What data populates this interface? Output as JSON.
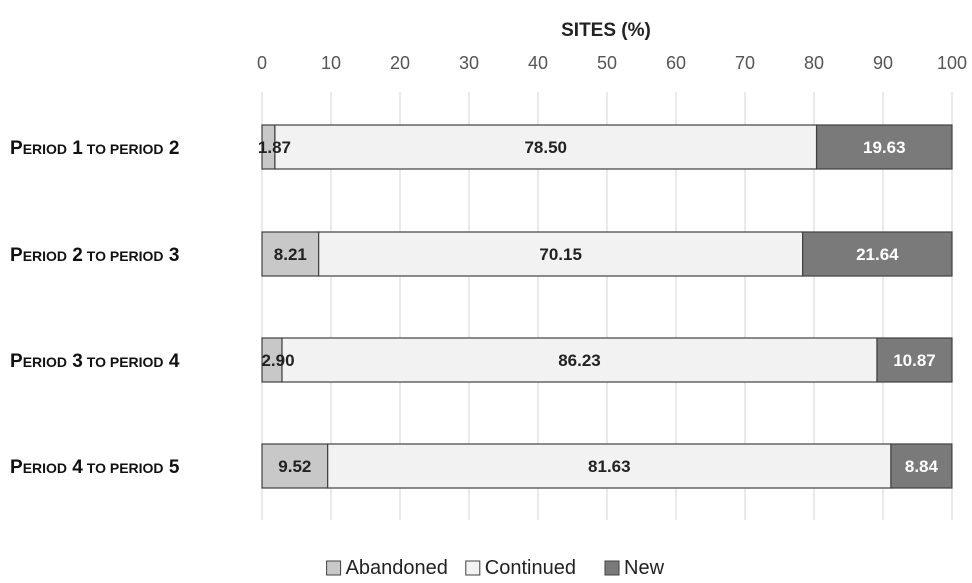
{
  "chart_data": {
    "type": "bar",
    "orientation": "horizontal",
    "stacked": true,
    "title": "",
    "xlabel": "SITES (%)",
    "ylabel": "",
    "xlim": [
      0,
      100
    ],
    "x_ticks": [
      "0",
      "10",
      "20",
      "30",
      "40",
      "50",
      "60",
      "70",
      "80",
      "90",
      "100"
    ],
    "x_axis_position": "top",
    "grid": "vertical",
    "legend_position": "bottom",
    "categories": [
      "Period 1 to period 2",
      "Period 2 to period 3",
      "Period 3 to period 4",
      "Period 4 to period 5"
    ],
    "series": [
      {
        "name": "Abandoned",
        "values": [
          1.87,
          8.21,
          2.9,
          9.52
        ],
        "labels": [
          "1.87",
          "8.21",
          "2.90",
          "9.52"
        ],
        "color": "#c8c8c8"
      },
      {
        "name": "Continued",
        "values": [
          78.5,
          70.15,
          86.23,
          81.63
        ],
        "labels": [
          "78.50",
          "70.15",
          "86.23",
          "81.63"
        ],
        "color": "#f2f2f2"
      },
      {
        "name": "New",
        "values": [
          19.63,
          21.64,
          10.87,
          8.84
        ],
        "labels": [
          "19.63",
          "21.64",
          "10.87",
          "8.84"
        ],
        "color": "#7a7a7a"
      }
    ]
  }
}
